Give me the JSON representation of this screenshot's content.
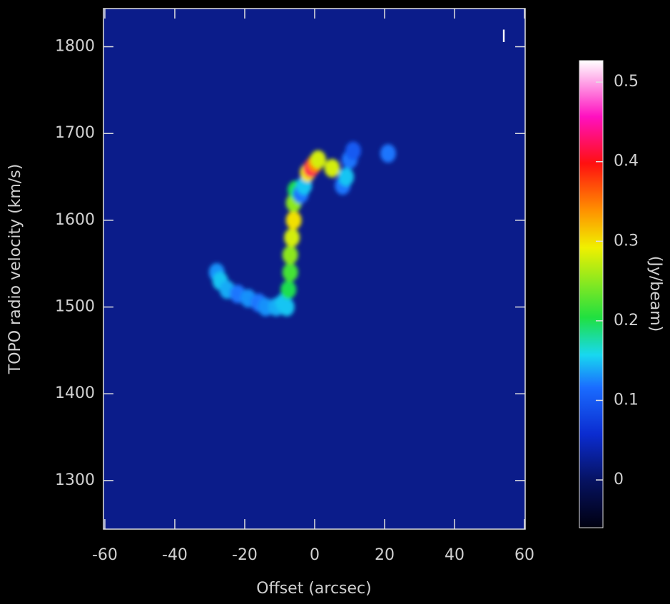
{
  "chart_data": {
    "type": "heatmap",
    "xlabel": "Offset (arcsec)",
    "ylabel": "TOPO radio velocity (km/s)",
    "stokes": "I",
    "xlim": [
      -60.4,
      60.2
    ],
    "ylim": [
      1244,
      1844
    ],
    "xticks": [
      -60,
      -40,
      -20,
      0,
      20,
      40,
      60
    ],
    "yticks": [
      1300,
      1400,
      1500,
      1600,
      1700,
      1800
    ],
    "x": [
      -28,
      -27,
      -25,
      -22,
      -19,
      -16,
      -14,
      -11,
      -9,
      -8,
      -7.5,
      -7,
      -7,
      -6.5,
      -6,
      -6,
      -5.5,
      -4,
      -3,
      -2,
      -1,
      0,
      1,
      5,
      8,
      9,
      10,
      11,
      21
    ],
    "y": [
      1540,
      1530,
      1520,
      1515,
      1510,
      1505,
      1500,
      1500,
      1505,
      1500,
      1520,
      1540,
      1560,
      1580,
      1600,
      1620,
      1635,
      1630,
      1640,
      1655,
      1660,
      1665,
      1670,
      1660,
      1640,
      1650,
      1670,
      1680,
      1677
    ],
    "values": [
      0.13,
      0.15,
      0.14,
      0.12,
      0.13,
      0.12,
      0.13,
      0.14,
      0.15,
      0.15,
      0.2,
      0.22,
      0.25,
      0.28,
      0.3,
      0.25,
      0.2,
      0.12,
      0.15,
      0.3,
      0.42,
      0.35,
      0.28,
      0.28,
      0.12,
      0.15,
      0.12,
      0.1,
      0.12
    ],
    "colorbar": {
      "label": "(Jy/beam)",
      "lim": [
        -0.06,
        0.527
      ],
      "ticks": [
        0,
        0.1,
        0.2,
        0.3,
        0.4,
        0.5
      ]
    }
  }
}
